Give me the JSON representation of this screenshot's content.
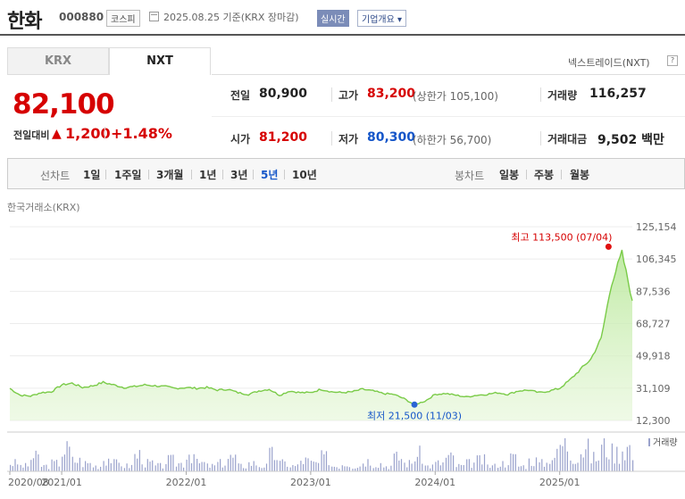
{
  "header": {
    "title": "한화",
    "code": "000880",
    "market": "코스피",
    "date_text": "2025.08.25  기준(KRX 장마감)",
    "realtime_label": "실시간",
    "company_label": "기업개요 ▾"
  },
  "tabs": [
    {
      "label": "KRX",
      "active": false
    },
    {
      "label": "NXT",
      "active": true
    }
  ],
  "nxt_link": "넥스트레이드(NXT)",
  "nxt_box": "?",
  "price": {
    "current": "82,100",
    "change_label": "전일대비",
    "change_arrow": "▲",
    "change_value": "1,200",
    "change_rate": "+1.48%"
  },
  "stats": {
    "prev_close_label": "전일",
    "prev_close": "80,900",
    "high_label": "고가",
    "high": "83,200",
    "upper_limit": "(상한가 105,100)",
    "volume_label": "거래량",
    "volume": "116,257",
    "open_label": "시가",
    "open": "81,200",
    "low_label": "저가",
    "low": "80,300",
    "lower_limit": "(하한가 56,700)",
    "amount_label": "거래대금",
    "amount": "9,502 백만"
  },
  "period_bar": {
    "line_label": "선차트",
    "line_periods": [
      "1일",
      "1주일",
      "3개월",
      "1년",
      "3년",
      "5년",
      "10년"
    ],
    "active_period": "5년",
    "candle_label": "봉차트",
    "candle_periods": [
      "일봉",
      "주봉",
      "월봉"
    ]
  },
  "chart_caption": "한국거래소(KRX)",
  "chart_data": {
    "type": "area",
    "title": "한국거래소(KRX)",
    "y_ticks": [
      "125,154",
      "106,345",
      "87,536",
      "68,727",
      "49,918",
      "31,109",
      "12,300"
    ],
    "ylim": [
      12300,
      125154
    ],
    "x_ticks": [
      "2020/08",
      "2021/01",
      "2022/01",
      "2023/01",
      "2024/01",
      "2025/01"
    ],
    "max_annotation": "최고 113,500 (07/04)",
    "min_annotation": "최저 21,500 (11/03)",
    "volume_legend": "거래량",
    "series": [
      {
        "name": "종가",
        "x": [
          "2020/08",
          "2020/09",
          "2020/10",
          "2020/11",
          "2020/12",
          "2021/01",
          "2021/02",
          "2021/03",
          "2021/04",
          "2021/05",
          "2021/06",
          "2021/07",
          "2021/08",
          "2021/09",
          "2021/10",
          "2021/11",
          "2021/12",
          "2022/01",
          "2022/02",
          "2022/03",
          "2022/04",
          "2022/05",
          "2022/06",
          "2022/07",
          "2022/08",
          "2022/09",
          "2022/10",
          "2022/11",
          "2022/12",
          "2023/01",
          "2023/02",
          "2023/03",
          "2023/04",
          "2023/05",
          "2023/06",
          "2023/07",
          "2023/08",
          "2023/09",
          "2023/10",
          "2023/11",
          "2023/12",
          "2024/01",
          "2024/02",
          "2024/03",
          "2024/04",
          "2024/05",
          "2024/06",
          "2024/07",
          "2024/08",
          "2024/09",
          "2024/10",
          "2024/11",
          "2024/12",
          "2025/01",
          "2025/02",
          "2025/03",
          "2025/04",
          "2025/05",
          "2025/06",
          "2025/07",
          "2025/08"
        ],
        "values": [
          31000,
          27000,
          26500,
          28500,
          29000,
          33000,
          34000,
          31500,
          32500,
          34500,
          33000,
          31500,
          32000,
          33000,
          32500,
          32000,
          31000,
          31500,
          31000,
          31500,
          30000,
          30500,
          28500,
          27500,
          29500,
          30500,
          27000,
          29500,
          28500,
          28500,
          30500,
          29000,
          28500,
          29000,
          30500,
          29500,
          28000,
          27500,
          25000,
          21500,
          23500,
          27500,
          28000,
          27000,
          26000,
          27000,
          27500,
          28500,
          27500,
          29500,
          30000,
          28500,
          29500,
          31000,
          36000,
          42000,
          48000,
          60000,
          92000,
          110000,
          82100
        ]
      }
    ],
    "volume_series": [
      3,
      2,
      5,
      2,
      3,
      8,
      4,
      3,
      2,
      5,
      3,
      2,
      6,
      3,
      2,
      4,
      3,
      7,
      3,
      2,
      3,
      5,
      2,
      3,
      2,
      6,
      3,
      2,
      4,
      3,
      5,
      2,
      3,
      2,
      4,
      3,
      2,
      5,
      3,
      6,
      2,
      3,
      5,
      2,
      3,
      4,
      2,
      3,
      5,
      2,
      4,
      3,
      6,
      10,
      6,
      8,
      5,
      9,
      7,
      9,
      5
    ]
  }
}
